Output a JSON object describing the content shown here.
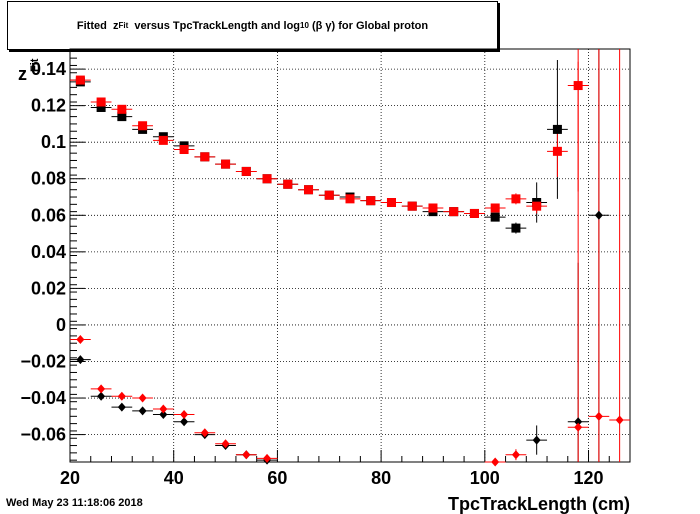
{
  "title": {
    "part1": "Fitted  z",
    "sub1": "Fit",
    "part2": "  versus TpcTrackLength and log",
    "sub2": "10",
    "part3": " (β γ) for Global proton"
  },
  "timestamp": "Wed May 23 11:18:06 2018",
  "chart_data": {
    "type": "scatter",
    "xlabel": "TpcTrackLength (cm)",
    "ylabel": "z_Fit",
    "xlim": [
      20,
      128
    ],
    "ylim": [
      -0.075,
      0.151
    ],
    "x_ticks": [
      20,
      40,
      60,
      80,
      100,
      120
    ],
    "y_ticks": [
      -0.06,
      -0.04,
      -0.02,
      0,
      0.02,
      0.04,
      0.06,
      0.08,
      0.1,
      0.12,
      0.14
    ],
    "y_tick_labels": [
      "−0.06",
      "−0.04",
      "−0.02",
      "0",
      "0.02",
      "0.04",
      "0.06",
      "0.08",
      "0.1",
      "0.12",
      "0.14"
    ],
    "x_tick_labels": [
      "20",
      "40",
      "60",
      "80",
      "100",
      "120"
    ],
    "grid": true,
    "x_bin_half_width": 2,
    "colors": {
      "black": "#000000",
      "red": "#ff0000"
    },
    "series": [
      {
        "marker": "square",
        "color": "#000000",
        "points": [
          {
            "x": 22,
            "y": 0.133,
            "err": 0.001
          },
          {
            "x": 26,
            "y": 0.119,
            "err": 0.001
          },
          {
            "x": 30,
            "y": 0.114,
            "err": 0.001
          },
          {
            "x": 34,
            "y": 0.107,
            "err": 0.001
          },
          {
            "x": 38,
            "y": 0.103,
            "err": 0.001
          },
          {
            "x": 42,
            "y": 0.098,
            "err": 0.001
          },
          {
            "x": 46,
            "y": 0.092,
            "err": 0.001
          },
          {
            "x": 50,
            "y": 0.088,
            "err": 0.001
          },
          {
            "x": 54,
            "y": 0.084,
            "err": 0.001
          },
          {
            "x": 58,
            "y": 0.08,
            "err": 0.001
          },
          {
            "x": 62,
            "y": 0.077,
            "err": 0.001
          },
          {
            "x": 66,
            "y": 0.074,
            "err": 0.001
          },
          {
            "x": 70,
            "y": 0.071,
            "err": 0.001
          },
          {
            "x": 74,
            "y": 0.07,
            "err": 0.001
          },
          {
            "x": 78,
            "y": 0.068,
            "err": 0.001
          },
          {
            "x": 82,
            "y": 0.067,
            "err": 0.001
          },
          {
            "x": 86,
            "y": 0.065,
            "err": 0.001
          },
          {
            "x": 90,
            "y": 0.062,
            "err": 0.001
          },
          {
            "x": 94,
            "y": 0.062,
            "err": 0.001
          },
          {
            "x": 98,
            "y": 0.061,
            "err": 0.001
          },
          {
            "x": 102,
            "y": 0.059,
            "err": 0.002
          },
          {
            "x": 106,
            "y": 0.053,
            "err": 0.003
          },
          {
            "x": 110,
            "y": 0.067,
            "err": 0.011
          },
          {
            "x": 114,
            "y": 0.107,
            "err": 0.038
          }
        ]
      },
      {
        "marker": "square",
        "color": "#ff0000",
        "points": [
          {
            "x": 22,
            "y": 0.134,
            "err": 0.001
          },
          {
            "x": 26,
            "y": 0.122,
            "err": 0.001
          },
          {
            "x": 30,
            "y": 0.118,
            "err": 0.001
          },
          {
            "x": 34,
            "y": 0.109,
            "err": 0.001
          },
          {
            "x": 38,
            "y": 0.101,
            "err": 0.001
          },
          {
            "x": 42,
            "y": 0.096,
            "err": 0.001
          },
          {
            "x": 46,
            "y": 0.092,
            "err": 0.001
          },
          {
            "x": 50,
            "y": 0.088,
            "err": 0.001
          },
          {
            "x": 54,
            "y": 0.084,
            "err": 0.001
          },
          {
            "x": 58,
            "y": 0.08,
            "err": 0.001
          },
          {
            "x": 62,
            "y": 0.077,
            "err": 0.001
          },
          {
            "x": 66,
            "y": 0.074,
            "err": 0.001
          },
          {
            "x": 70,
            "y": 0.071,
            "err": 0.001
          },
          {
            "x": 74,
            "y": 0.069,
            "err": 0.001
          },
          {
            "x": 78,
            "y": 0.068,
            "err": 0.001
          },
          {
            "x": 82,
            "y": 0.067,
            "err": 0.001
          },
          {
            "x": 86,
            "y": 0.065,
            "err": 0.001
          },
          {
            "x": 90,
            "y": 0.064,
            "err": 0.001
          },
          {
            "x": 94,
            "y": 0.062,
            "err": 0.001
          },
          {
            "x": 98,
            "y": 0.061,
            "err": 0.001
          },
          {
            "x": 102,
            "y": 0.064,
            "err": 0.002
          },
          {
            "x": 106,
            "y": 0.069,
            "err": 0.003
          },
          {
            "x": 110,
            "y": 0.065,
            "err": 0.004
          },
          {
            "x": 114,
            "y": 0.095,
            "err": 0.014
          },
          {
            "x": 118,
            "y": 0.131,
            "err": 0.058
          }
        ]
      },
      {
        "marker": "diamond",
        "color": "#000000",
        "points": [
          {
            "x": 22,
            "y": -0.019,
            "err": 0.001
          },
          {
            "x": 26,
            "y": -0.039,
            "err": 0.001
          },
          {
            "x": 30,
            "y": -0.045,
            "err": 0.001
          },
          {
            "x": 34,
            "y": -0.047,
            "err": 0.001
          },
          {
            "x": 38,
            "y": -0.049,
            "err": 0.001
          },
          {
            "x": 42,
            "y": -0.053,
            "err": 0.001
          },
          {
            "x": 46,
            "y": -0.06,
            "err": 0.001
          },
          {
            "x": 50,
            "y": -0.066,
            "err": 0.001
          },
          {
            "x": 54,
            "y": -0.071,
            "err": 0.001
          },
          {
            "x": 58,
            "y": -0.074,
            "err": 0.001
          },
          {
            "x": 110,
            "y": -0.063,
            "err": 0.008
          },
          {
            "x": 118,
            "y": -0.053,
            "err": 0.087
          },
          {
            "x": 122,
            "y": 0.06,
            "err": 0.2
          }
        ]
      },
      {
        "marker": "diamond",
        "color": "#ff0000",
        "points": [
          {
            "x": 22,
            "y": -0.008,
            "err": 0.001
          },
          {
            "x": 26,
            "y": -0.035,
            "err": 0.001
          },
          {
            "x": 30,
            "y": -0.039,
            "err": 0.001
          },
          {
            "x": 34,
            "y": -0.04,
            "err": 0.001
          },
          {
            "x": 38,
            "y": -0.046,
            "err": 0.001
          },
          {
            "x": 42,
            "y": -0.049,
            "err": 0.001
          },
          {
            "x": 46,
            "y": -0.059,
            "err": 0.001
          },
          {
            "x": 50,
            "y": -0.065,
            "err": 0.001
          },
          {
            "x": 54,
            "y": -0.071,
            "err": 0.001
          },
          {
            "x": 58,
            "y": -0.073,
            "err": 0.001
          },
          {
            "x": 102,
            "y": -0.075,
            "err": 0.001
          },
          {
            "x": 106,
            "y": -0.071,
            "err": 0.003
          },
          {
            "x": 118,
            "y": -0.056,
            "err": 0.2
          },
          {
            "x": 122,
            "y": -0.05,
            "err": 0.3
          },
          {
            "x": 126,
            "y": -0.052,
            "err": 0.3
          }
        ]
      }
    ]
  }
}
